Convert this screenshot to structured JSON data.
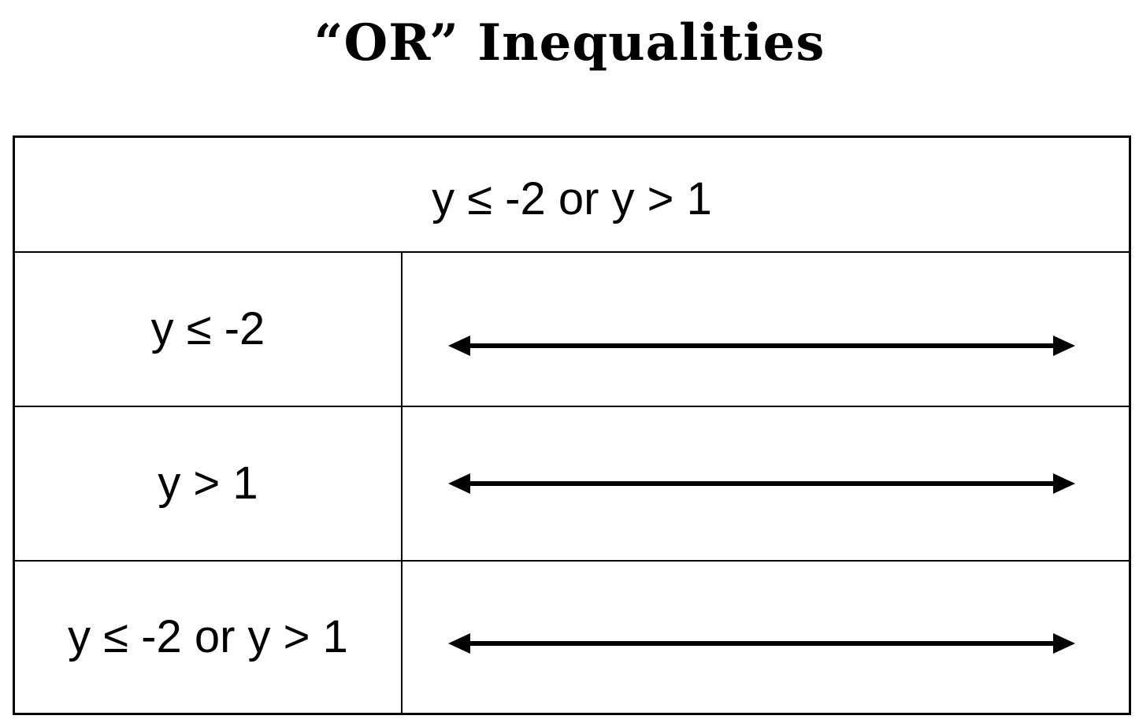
{
  "title": "“OR” Inequalities",
  "table": {
    "header": "y ≤ -2 or y > 1",
    "rows": [
      {
        "label": "y ≤ -2"
      },
      {
        "label": "y > 1"
      },
      {
        "label": "y ≤ -2 or y > 1"
      }
    ]
  },
  "number_line": {
    "type": "double-arrow",
    "color": "#000000",
    "tick_labels": []
  }
}
